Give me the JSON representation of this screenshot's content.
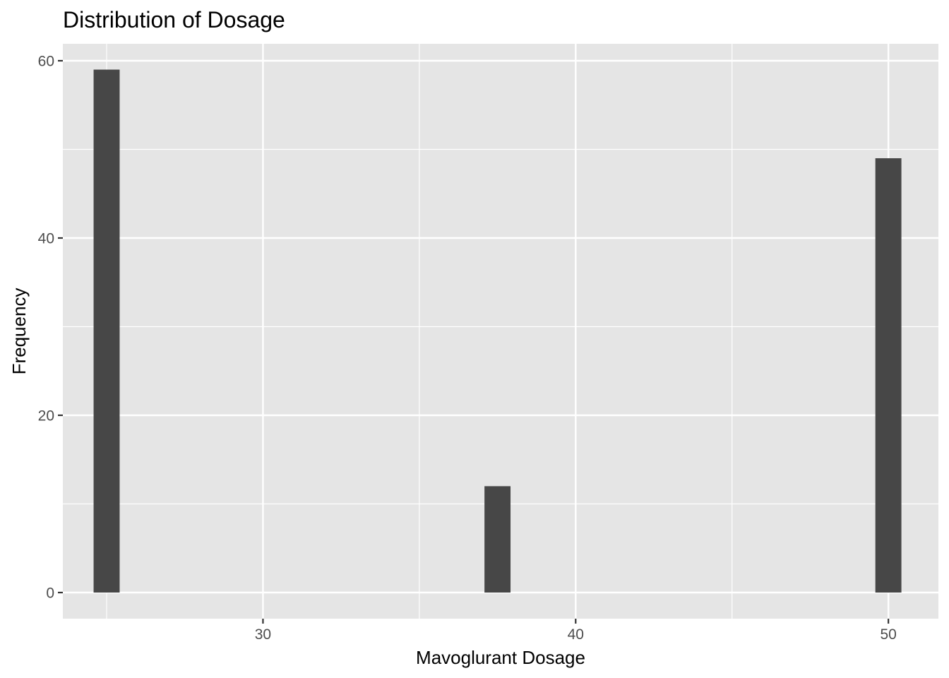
{
  "chart_data": {
    "type": "bar",
    "title": "Distribution of Dosage",
    "xlabel": "Mavoglurant Dosage",
    "ylabel": "Frequency",
    "xlim": [
      23.6,
      51.6
    ],
    "ylim": [
      0,
      61.95
    ],
    "x_ticks": [
      30,
      40,
      50
    ],
    "y_ticks": [
      0,
      20,
      40,
      60
    ],
    "bin_width": 0.833,
    "bins": [
      {
        "x": 25.0,
        "count": 59
      },
      {
        "x": 37.5,
        "count": 12
      },
      {
        "x": 50.0,
        "count": 49
      }
    ],
    "grid": true,
    "legend": "none",
    "colors": {
      "panel": "#e5e5e5",
      "grid": "#ffffff",
      "bar": "#474747",
      "tick": "#333333",
      "tick_label": "#4d4d4d"
    }
  }
}
